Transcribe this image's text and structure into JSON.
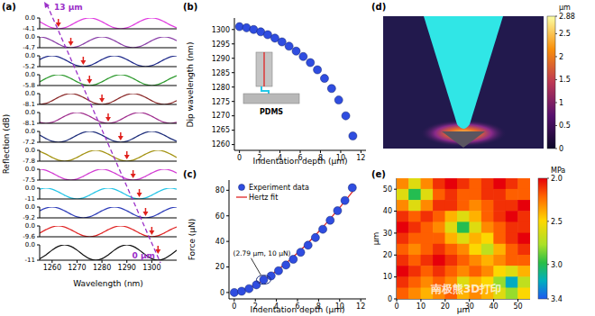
{
  "chart_data": [
    {
      "type": "line",
      "title": "(a)",
      "x_label": "Wavelength (nm)",
      "y_label": "Reflection (dB)",
      "x": [
        1255,
        1257.5,
        1260,
        1262.5,
        1265,
        1267.5,
        1270,
        1272.5,
        1275,
        1277.5,
        1280,
        1282.5,
        1285,
        1287.5,
        1290,
        1292.5,
        1295,
        1297.5,
        1300,
        1302.5,
        1305,
        1307.5,
        1310
      ],
      "xlim": [
        1255,
        1310
      ],
      "xticks": [
        1260,
        1270,
        1280,
        1290,
        1300
      ],
      "annotations": [
        {
          "text": "13 μm"
        },
        {
          "text": "0 μm"
        }
      ],
      "series": [
        {
          "color": "#e03ce0",
          "dip": 1262.5,
          "ylim": [
            -4.1,
            0
          ],
          "yticks": [
            -4.1,
            {
              "value": 0,
              "label": "0.0"
            }
          ],
          "values": [
            -1.41,
            -2.69,
            -3.71,
            -4.1,
            -3.71,
            -2.69,
            -1.41,
            -0.39,
            0,
            -0.39,
            -1.41,
            -2.69,
            -3.71,
            -4.1,
            -3.71,
            -2.69,
            -1.41,
            -0.39,
            0,
            -0.39,
            -1.41,
            -2.69,
            -3.71
          ]
        },
        {
          "color": "#8a3fa8",
          "dip": 1267.5,
          "ylim": [
            -4.7,
            0
          ],
          "yticks": [
            -4.7,
            {
              "value": 0,
              "label": "0.0"
            }
          ],
          "values": [
            0,
            -0.45,
            -1.62,
            -3.08,
            -4.25,
            -4.7,
            -4.25,
            -3.08,
            -1.62,
            -0.45,
            0,
            -0.45,
            -1.62,
            -3.08,
            -4.25,
            -4.7,
            -4.25,
            -3.08,
            -1.62,
            -0.45,
            0,
            -0.45,
            -1.62
          ]
        },
        {
          "color": "#1f2a8a",
          "dip": 1272.5,
          "ylim": [
            -5.2,
            0
          ],
          "yticks": [
            -5.2,
            {
              "value": 0,
              "label": "0.0"
            }
          ],
          "values": [
            -1.79,
            -0.49,
            0,
            -0.49,
            -1.79,
            -3.41,
            -4.71,
            -5.2,
            -4.71,
            -3.41,
            -1.79,
            -0.49,
            0,
            -0.49,
            -1.79,
            -3.41,
            -4.71,
            -5.2,
            -4.71,
            -3.41,
            -1.79,
            -0.49,
            0
          ]
        },
        {
          "color": "#2e9a2e",
          "dip": 1275,
          "ylim": [
            -5.8,
            0
          ],
          "yticks": [
            -5.8,
            {
              "value": 0,
              "label": "0.0"
            }
          ],
          "values": [
            -3.8,
            -2,
            -0.55,
            0,
            -0.55,
            -2,
            -3.8,
            -5.25,
            -5.8,
            -5.25,
            -3.8,
            -2,
            -0.55,
            0,
            -0.55,
            -2,
            -3.8,
            -5.25,
            -5.8,
            -5.25,
            -3.8,
            -2,
            -0.55
          ]
        },
        {
          "color": "#8b2a2a",
          "dip": 1280,
          "ylim": [
            -8.1,
            0
          ],
          "yticks": [
            -8.1,
            {
              "value": 0,
              "label": "0.0"
            }
          ],
          "values": [
            -8.1,
            -7.33,
            -5.31,
            -2.79,
            -0.77,
            0,
            -0.77,
            -2.79,
            -5.31,
            -7.33,
            -8.1,
            -7.33,
            -5.31,
            -2.79,
            -0.77,
            0,
            -0.77,
            -2.79,
            -5.31,
            -7.33,
            -8.1,
            -7.33,
            -5.31
          ]
        },
        {
          "color": "#a0308f",
          "dip": 1282.5,
          "ylim": [
            -8.1,
            0
          ],
          "yticks": [
            -8.1,
            {
              "value": 0,
              "label": "0.0"
            }
          ],
          "values": [
            -7.33,
            -8.1,
            -7.33,
            -5.31,
            -2.79,
            -0.77,
            0,
            -0.77,
            -2.79,
            -5.31,
            -7.33,
            -8.1,
            -7.33,
            -5.31,
            -2.79,
            -0.77,
            0,
            -0.77,
            -2.79,
            -5.31,
            -7.33,
            -8.1,
            -7.33
          ]
        },
        {
          "color": "#1d2d7a",
          "dip": 1287.5,
          "ylim": [
            -7.2,
            0
          ],
          "yticks": [
            -7.2,
            {
              "value": 0,
              "label": "0.0"
            }
          ],
          "values": [
            -2.48,
            -4.72,
            -6.52,
            -7.2,
            -6.52,
            -4.72,
            -2.48,
            -0.68,
            0,
            -0.68,
            -2.48,
            -4.72,
            -6.52,
            -7.2,
            -6.52,
            -4.72,
            -2.48,
            -0.68,
            0,
            -0.68,
            -2.48,
            -4.72,
            -6.52
          ]
        },
        {
          "color": "#a39210",
          "dip": 1290,
          "ylim": [
            -7.8,
            0
          ],
          "yticks": [
            -7.8,
            {
              "value": 0,
              "label": "0.0"
            }
          ],
          "values": [
            -0.74,
            -2.69,
            -5.11,
            -7.06,
            -7.8,
            -7.06,
            -5.11,
            -2.69,
            -0.74,
            0,
            -0.74,
            -2.69,
            -5.11,
            -7.06,
            -7.8,
            -7.06,
            -5.11,
            -2.69,
            -0.74,
            0,
            -0.74,
            -2.69,
            -5.11
          ]
        },
        {
          "color": "#d23ad2",
          "dip": 1292.5,
          "ylim": [
            -7.5,
            0
          ],
          "yticks": [
            -7.5,
            {
              "value": 0,
              "label": "0.0"
            }
          ],
          "values": [
            0,
            -0.71,
            -2.59,
            -4.91,
            -6.79,
            -7.5,
            -6.79,
            -4.91,
            -2.59,
            -0.71,
            0,
            -0.71,
            -2.59,
            -4.91,
            -6.79,
            -7.5,
            -6.79,
            -4.91,
            -2.59,
            -0.71,
            0,
            -0.71,
            -2.59
          ]
        },
        {
          "color": "#22c4e6",
          "dip": 1295,
          "ylim": [
            -11,
            0
          ],
          "yticks": [
            -11,
            {
              "value": 0,
              "label": "0.0"
            }
          ],
          "values": [
            -1.05,
            0,
            -1.05,
            -3.8,
            -7.21,
            -9.96,
            -11,
            -9.96,
            -7.21,
            -3.8,
            -1.05,
            0,
            -1.05,
            -3.8,
            -7.21,
            -9.96,
            -11,
            -9.96,
            -7.21,
            -3.8,
            -1.05,
            0,
            -1.05
          ]
        },
        {
          "color": "#2c3bb8",
          "dip": 1297.5,
          "ylim": [
            -9.2,
            0
          ],
          "yticks": [
            -9.2,
            {
              "value": 0,
              "label": "0.0"
            }
          ],
          "values": [
            -3.17,
            -0.87,
            0,
            -0.87,
            -3.17,
            -6.03,
            -8.33,
            -9.2,
            -8.33,
            -6.03,
            -3.17,
            -0.87,
            0,
            -0.87,
            -3.17,
            -6.03,
            -8.33,
            -9.2,
            -8.33,
            -6.03,
            -3.17,
            -0.87,
            0
          ]
        },
        {
          "color": "#e02424",
          "dip": 1300,
          "ylim": [
            -9.6,
            0
          ],
          "yticks": [
            -9.6,
            {
              "value": 0,
              "label": "0.0"
            }
          ],
          "values": [
            -6.29,
            -3.31,
            -0.91,
            0,
            -0.91,
            -3.31,
            -6.29,
            -8.69,
            -9.6,
            -8.69,
            -6.29,
            -3.31,
            -0.91,
            0,
            -0.91,
            -3.31,
            -6.29,
            -8.69,
            -9.6,
            -8.69,
            -6.29,
            -3.31,
            -0.91
          ]
        },
        {
          "color": "#111111",
          "dip": 1302.5,
          "ylim": [
            -11,
            0
          ],
          "yticks": [
            -11,
            {
              "value": 0,
              "label": "0.0"
            }
          ],
          "values": [
            -9.96,
            -7.21,
            -3.8,
            -1.05,
            0,
            -1.05,
            -3.8,
            -7.21,
            -9.96,
            -11,
            -9.96,
            -7.21,
            -3.8,
            -1.05,
            0,
            -1.05,
            -3.8,
            -7.21,
            -9.96,
            -11,
            -9.96,
            -7.21,
            -3.8
          ]
        }
      ]
    },
    {
      "type": "scatter",
      "title": "(b)",
      "x_label": "Indentation depth (μm)",
      "y_label": "Dip wavelength (nm)",
      "inset_label": "PDMS",
      "x": [
        0,
        0.7,
        1.4,
        2.1,
        2.79,
        3.5,
        4.2,
        4.9,
        5.6,
        6.3,
        7,
        7.7,
        8.4,
        9.1,
        9.8,
        10.5,
        11.2
      ],
      "values": [
        1301,
        1300.6,
        1300,
        1299.2,
        1298.2,
        1297,
        1295.7,
        1294.2,
        1292.5,
        1290.6,
        1288.5,
        1286,
        1283,
        1279.5,
        1275.5,
        1270,
        1263
      ],
      "color": "#2f4de0",
      "xlim": [
        -0.5,
        12.5
      ],
      "xticks": [
        0,
        2,
        4,
        6,
        8,
        10,
        12
      ],
      "ylim": [
        1258,
        1304
      ],
      "yticks": [
        1260,
        1265,
        1270,
        1275,
        1280,
        1285,
        1290,
        1295,
        1300
      ]
    },
    {
      "type": "scatter",
      "title": "(c)",
      "x_label": "Indentation depth (μm)",
      "y_label": "Force (μN)",
      "legend": "upper left",
      "xlim": [
        -0.5,
        12.5
      ],
      "xticks": [
        0,
        2,
        4,
        6,
        8,
        10,
        12
      ],
      "ylim": [
        -5,
        88
      ],
      "yticks": [
        0,
        20,
        40,
        60,
        80
      ],
      "series": [
        {
          "name": "Experiment data",
          "type": "scatter",
          "color": "#2f4de0",
          "x": [
            0,
            0.7,
            1.4,
            2.1,
            2.79,
            3.5,
            4.2,
            4.9,
            5.6,
            6.3,
            7,
            7.7,
            8.4,
            9.1,
            9.8,
            10.5,
            11.2
          ],
          "values": [
            0,
            1,
            3,
            6,
            10,
            13,
            17,
            21.5,
            26,
            31.5,
            37,
            43,
            49.5,
            56.5,
            64,
            72,
            82
          ]
        },
        {
          "name": "Hertz fit",
          "type": "line",
          "color": "#e02424",
          "x": [
            0,
            1,
            2,
            3,
            4,
            5,
            6,
            7,
            8,
            9,
            10,
            11,
            11.4
          ],
          "values": [
            0,
            2.1,
            5.9,
            10.9,
            16.8,
            23.5,
            30.9,
            38.9,
            47.5,
            56.7,
            66.4,
            76.6,
            80.8
          ]
        }
      ],
      "annotations": [
        {
          "x": 2.79,
          "y": 10,
          "text": "(2.79 μm, 10 μN)"
        }
      ]
    },
    {
      "type": "image",
      "title": "(d)",
      "colorbar": {
        "range": [
          0,
          2.88
        ],
        "ticks": [
          0,
          0.5,
          1,
          1.5,
          2,
          2.5,
          2.88
        ],
        "label": "μm"
      }
    },
    {
      "type": "heatmap",
      "title": "(e)",
      "x_label": "μm",
      "y_label": "μm",
      "x": [
        2.5,
        7.5,
        12.5,
        17.5,
        22.5,
        27.5,
        32.5,
        37.5,
        42.5,
        47.5,
        52.5
      ],
      "y": [
        52.5,
        47.5,
        42.5,
        37.5,
        32.5,
        27.5,
        22.5,
        17.5,
        12.5,
        7.5,
        2.5
      ],
      "values": [
        [
          2.3,
          2.6,
          2.3,
          2.1,
          2.0,
          2.1,
          2.2,
          2.1,
          2.0,
          2.1,
          2.2
        ],
        [
          2.6,
          3.0,
          2.6,
          2.2,
          2.1,
          2.2,
          2.2,
          2.1,
          2.1,
          2.2,
          2.2
        ],
        [
          2.3,
          2.6,
          2.3,
          2.1,
          2.1,
          2.2,
          2.3,
          2.2,
          2.1,
          2.1,
          2.0
        ],
        [
          2.1,
          2.2,
          2.1,
          2.2,
          2.4,
          2.6,
          2.4,
          2.2,
          2.1,
          2.0,
          2.1
        ],
        [
          2.0,
          2.1,
          2.2,
          2.3,
          2.6,
          3.0,
          2.6,
          2.3,
          2.2,
          2.1,
          2.1
        ],
        [
          2.1,
          2.2,
          2.2,
          2.2,
          2.4,
          2.6,
          2.4,
          2.5,
          2.2,
          2.1,
          2.0
        ],
        [
          2.2,
          2.3,
          2.2,
          2.1,
          2.2,
          2.3,
          2.5,
          2.7,
          2.4,
          2.2,
          2.1
        ],
        [
          2.1,
          2.2,
          2.1,
          2.0,
          2.1,
          2.2,
          2.3,
          2.4,
          2.3,
          2.2,
          2.2
        ],
        [
          2.0,
          2.1,
          2.2,
          2.1,
          2.2,
          2.3,
          2.2,
          2.3,
          2.5,
          2.6,
          2.4
        ],
        [
          2.1,
          2.2,
          2.3,
          2.2,
          2.3,
          2.6,
          2.4,
          2.5,
          2.8,
          3.2,
          2.7
        ],
        [
          2.2,
          2.3,
          2.4,
          2.3,
          2.2,
          2.4,
          2.3,
          2.4,
          2.6,
          2.8,
          2.5
        ]
      ],
      "xlim": [
        0,
        55
      ],
      "xticks": [
        0,
        10,
        20,
        30,
        40,
        50
      ],
      "ylim": [
        0,
        55
      ],
      "yticks": [
        0,
        10,
        20,
        30,
        40,
        50
      ],
      "colorbar": {
        "range": [
          2,
          3.4
        ],
        "ticks": [
          {
            "value": 2,
            "label": "2.0"
          },
          2.5,
          {
            "value": 3,
            "label": "3.0"
          },
          3.4
        ],
        "label": "MPa"
      }
    }
  ],
  "watermark": "南极熊3D打印"
}
